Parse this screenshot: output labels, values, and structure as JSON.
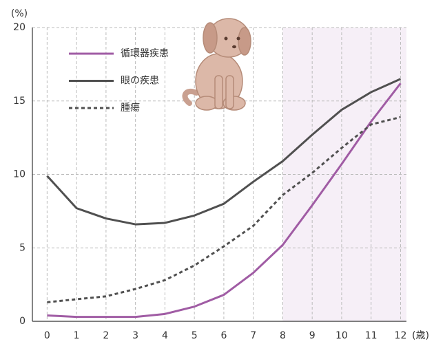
{
  "chart_data": {
    "type": "line",
    "y_unit": "(%)",
    "x_unit": "(歳)",
    "x": [
      0,
      1,
      2,
      3,
      4,
      5,
      6,
      7,
      8,
      9,
      10,
      11,
      12
    ],
    "xlim": [
      -0.5,
      12.2
    ],
    "xticks": [
      0,
      1,
      2,
      3,
      4,
      5,
      6,
      7,
      8,
      9,
      10,
      11,
      12
    ],
    "ylim": [
      0,
      20
    ],
    "yticks": [
      0,
      5,
      10,
      15,
      20
    ],
    "grid": true,
    "highlight": {
      "from": 8,
      "to": 12.2,
      "color": "#f6eff7"
    },
    "series": [
      {
        "name": "循環器疾患",
        "color": "#a05ca4",
        "dash": false,
        "values": [
          0.4,
          0.3,
          0.3,
          0.3,
          0.5,
          1.0,
          1.8,
          3.3,
          5.2,
          7.9,
          10.7,
          13.6,
          16.2
        ]
      },
      {
        "name": "眼の疾患",
        "color": "#505050",
        "dash": false,
        "values": [
          9.9,
          7.7,
          7.0,
          6.6,
          6.7,
          7.2,
          8.0,
          9.5,
          10.9,
          12.7,
          14.4,
          15.6,
          16.5
        ]
      },
      {
        "name": "腫瘍",
        "color": "#505050",
        "dash": true,
        "values": [
          1.3,
          1.5,
          1.7,
          2.2,
          2.8,
          3.8,
          5.1,
          6.5,
          8.6,
          10.1,
          11.8,
          13.4,
          13.9
        ]
      }
    ]
  }
}
